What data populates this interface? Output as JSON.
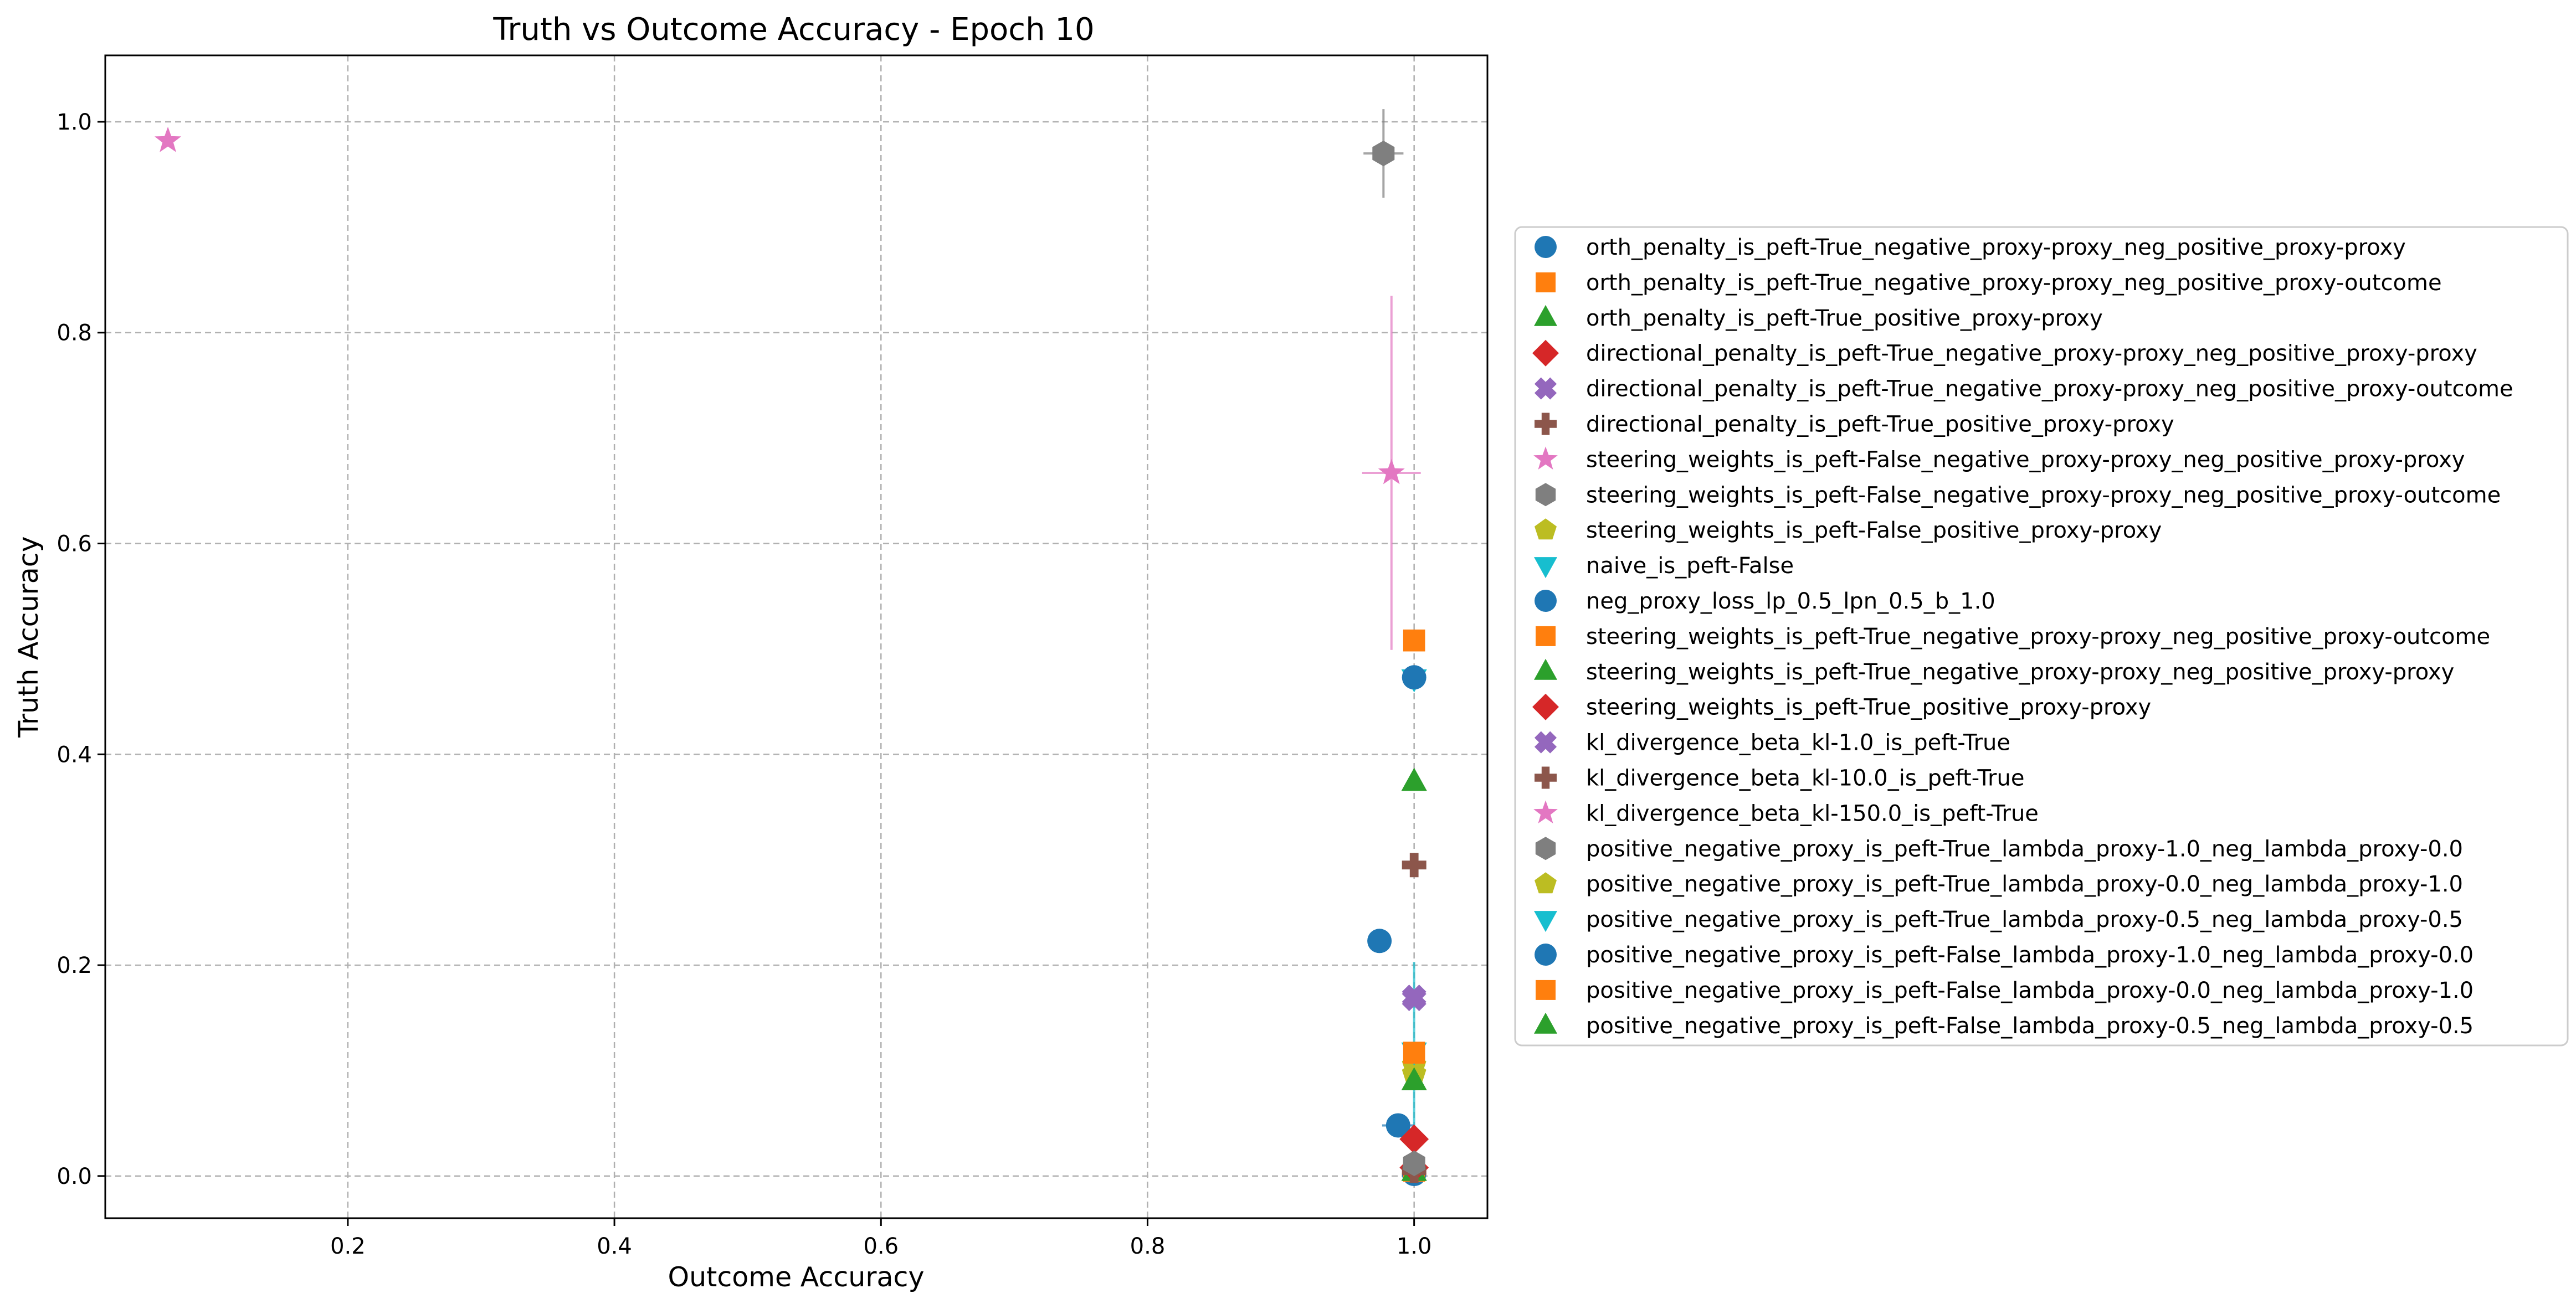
{
  "chart_data": {
    "type": "scatter",
    "title": "Truth vs Outcome Accuracy - Epoch 10",
    "xlabel": "Outcome Accuracy",
    "ylabel": "Truth Accuracy",
    "xlim": [
      0.018,
      1.055
    ],
    "ylim": [
      -0.04,
      1.063
    ],
    "xticks": [
      "0.2",
      "0.4",
      "0.6",
      "0.8",
      "1.0"
    ],
    "yticks": [
      "0.0",
      "0.2",
      "0.4",
      "0.6",
      "0.8",
      "1.0"
    ],
    "grid": true,
    "legend_position": "center-right outside",
    "series": [
      {
        "name": "orth_penalty_is_peft-True_negative_proxy-proxy_neg_positive_proxy-proxy",
        "color": "#1f77b4",
        "marker": "circle",
        "x": 1.0,
        "y": 0.002
      },
      {
        "name": "orth_penalty_is_peft-True_negative_proxy-proxy_neg_positive_proxy-outcome",
        "color": "#ff7f0e",
        "marker": "square",
        "x": 1.0,
        "y": 0.005
      },
      {
        "name": "orth_penalty_is_peft-True_positive_proxy-proxy",
        "color": "#2ca02c",
        "marker": "triangle-up",
        "x": 1.0,
        "y": 0.004
      },
      {
        "name": "directional_penalty_is_peft-True_negative_proxy-proxy_neg_positive_proxy-proxy",
        "color": "#d62728",
        "marker": "diamond",
        "x": 1.0,
        "y": 0.008
      },
      {
        "name": "directional_penalty_is_peft-True_negative_proxy-proxy_neg_positive_proxy-outcome",
        "color": "#9467bd",
        "marker": "x",
        "x": 1.0,
        "y": 0.168
      },
      {
        "name": "directional_penalty_is_peft-True_positive_proxy-proxy",
        "color": "#8c564b",
        "marker": "plus",
        "x": 1.0,
        "y": 0.295
      },
      {
        "name": "steering_weights_is_peft-False_negative_proxy-proxy_neg_positive_proxy-proxy",
        "color": "#e377c2",
        "marker": "star",
        "x": 0.983,
        "y": 0.667,
        "xerr": 0.022,
        "yerr": 0.168
      },
      {
        "name": "steering_weights_is_peft-False_negative_proxy-proxy_neg_positive_proxy-outcome",
        "color": "#7f7f7f",
        "marker": "hexagon",
        "x": 0.977,
        "y": 0.97,
        "xerr": 0.015,
        "yerr": 0.042
      },
      {
        "name": "steering_weights_is_peft-False_positive_proxy-proxy",
        "color": "#bcbd22",
        "marker": "pentagon",
        "x": 1.0,
        "y": 0.097
      },
      {
        "name": "naive_is_peft-False",
        "color": "#17becf",
        "marker": "triangle-down",
        "x": 1.0,
        "y": 0.472
      },
      {
        "name": "neg_proxy_loss_lp_0.5_lpn_0.5_b_1.0",
        "color": "#1f77b4",
        "marker": "circle",
        "x": 1.0,
        "y": 0.473
      },
      {
        "name": "steering_weights_is_peft-True_negative_proxy-proxy_neg_positive_proxy-outcome",
        "color": "#ff7f0e",
        "marker": "square",
        "x": 1.0,
        "y": 0.508
      },
      {
        "name": "steering_weights_is_peft-True_negative_proxy-proxy_neg_positive_proxy-proxy",
        "color": "#2ca02c",
        "marker": "triangle-up",
        "x": 1.0,
        "y": 0.374
      },
      {
        "name": "steering_weights_is_peft-True_positive_proxy-proxy",
        "color": "#d62728",
        "marker": "diamond",
        "x": 1.0,
        "y": 0.035
      },
      {
        "name": "kl_divergence_beta_kl-1.0_is_peft-True",
        "color": "#9467bd",
        "marker": "x",
        "x": 1.0,
        "y": 0.17
      },
      {
        "name": "kl_divergence_beta_kl-10.0_is_peft-True",
        "color": "#8c564b",
        "marker": "plus",
        "x": 1.0,
        "y": 0.005
      },
      {
        "name": "kl_divergence_beta_kl-150.0_is_peft-True",
        "color": "#e377c2",
        "marker": "star",
        "x": 0.065,
        "y": 0.982
      },
      {
        "name": "positive_negative_proxy_is_peft-True_lambda_proxy-1.0_neg_lambda_proxy-0.0",
        "color": "#7f7f7f",
        "marker": "hexagon",
        "x": 1.0,
        "y": 0.012
      },
      {
        "name": "positive_negative_proxy_is_peft-True_lambda_proxy-0.0_neg_lambda_proxy-1.0",
        "color": "#bcbd22",
        "marker": "pentagon",
        "x": 1.0,
        "y": 0.105
      },
      {
        "name": "positive_negative_proxy_is_peft-True_lambda_proxy-0.5_neg_lambda_proxy-0.5",
        "color": "#17becf",
        "marker": "triangle-down",
        "x": 1.0,
        "y": 0.118,
        "yerr": 0.085
      },
      {
        "name": "positive_negative_proxy_is_peft-False_lambda_proxy-1.0_neg_lambda_proxy-0.0",
        "color": "#1f77b4",
        "marker": "circle",
        "x": 0.974,
        "y": 0.223
      },
      {
        "name": "positive_negative_proxy_is_peft-False_lambda_proxy-0.0_neg_lambda_proxy-1.0",
        "color": "#ff7f0e",
        "marker": "square",
        "x": 1.0,
        "y": 0.117
      },
      {
        "name": "positive_negative_proxy_is_peft-False_lambda_proxy-0.5_neg_lambda_proxy-0.5",
        "color": "#2ca02c",
        "marker": "triangle-up",
        "x": 1.0,
        "y": 0.09
      }
    ],
    "extra_points": [
      {
        "color": "#1f77b4",
        "marker": "circle",
        "x": 0.988,
        "y": 0.048,
        "xerr": 0.012
      }
    ]
  }
}
